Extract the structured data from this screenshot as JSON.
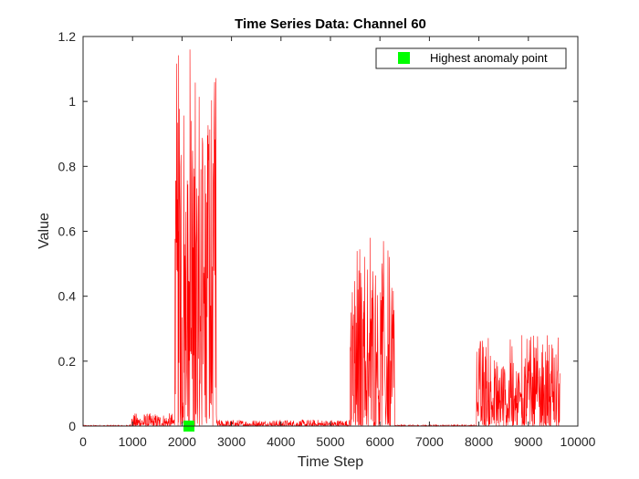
{
  "chart_data": {
    "type": "line",
    "title": "Time Series Data: Channel 60",
    "xlabel": "Time Step",
    "ylabel": "Value",
    "xlim": [
      0,
      10000
    ],
    "ylim": [
      0,
      1.2
    ],
    "xticks": [
      0,
      1000,
      2000,
      3000,
      4000,
      5000,
      6000,
      7000,
      8000,
      9000,
      10000
    ],
    "xtick_labels": [
      "0",
      "1000",
      "2000",
      "3000",
      "4000",
      "5000",
      "6000",
      "7000",
      "8000",
      "9000",
      "10000"
    ],
    "yticks": [
      0,
      0.2,
      0.4,
      0.6,
      0.8,
      1,
      1.2
    ],
    "ytick_labels": [
      "0",
      "0.2",
      "0.4",
      "0.6",
      "0.8",
      "1",
      "1.2"
    ],
    "grid": false,
    "legend_position": "top-right",
    "series": [
      {
        "color": "#ff0000",
        "x_range": [
          0,
          9640
        ],
        "segments": [
          {
            "x_start": 0,
            "x_end": 950,
            "max": 0.003
          },
          {
            "x_start": 950,
            "x_end": 1850,
            "max": 0.04
          },
          {
            "x_start": 1850,
            "x_end": 2700,
            "max": 1.16
          },
          {
            "x_start": 2700,
            "x_end": 5400,
            "max": 0.02
          },
          {
            "x_start": 5400,
            "x_end": 6300,
            "max": 0.59
          },
          {
            "x_start": 6300,
            "x_end": 7950,
            "max": 0.004
          },
          {
            "x_start": 7950,
            "x_end": 9640,
            "max": 0.28
          }
        ],
        "peaks": [
          {
            "x": 1920,
            "y": 0.6
          },
          {
            "x": 2050,
            "y": 0.56
          },
          {
            "x": 2160,
            "y": 1.16
          },
          {
            "x": 2190,
            "y": 0.94
          },
          {
            "x": 2450,
            "y": 0.49
          },
          {
            "x": 5500,
            "y": 0.37
          },
          {
            "x": 5680,
            "y": 0.35
          },
          {
            "x": 5800,
            "y": 0.58
          },
          {
            "x": 6250,
            "y": 0.09
          },
          {
            "x": 8870,
            "y": 0.28
          },
          {
            "x": 9120,
            "y": 0.21
          }
        ]
      },
      {
        "name": "Highest anomaly point",
        "type": "scatter",
        "marker": "square",
        "color": "#00ff00",
        "points": [
          {
            "x": 2140,
            "y": 0.0
          }
        ]
      }
    ]
  }
}
